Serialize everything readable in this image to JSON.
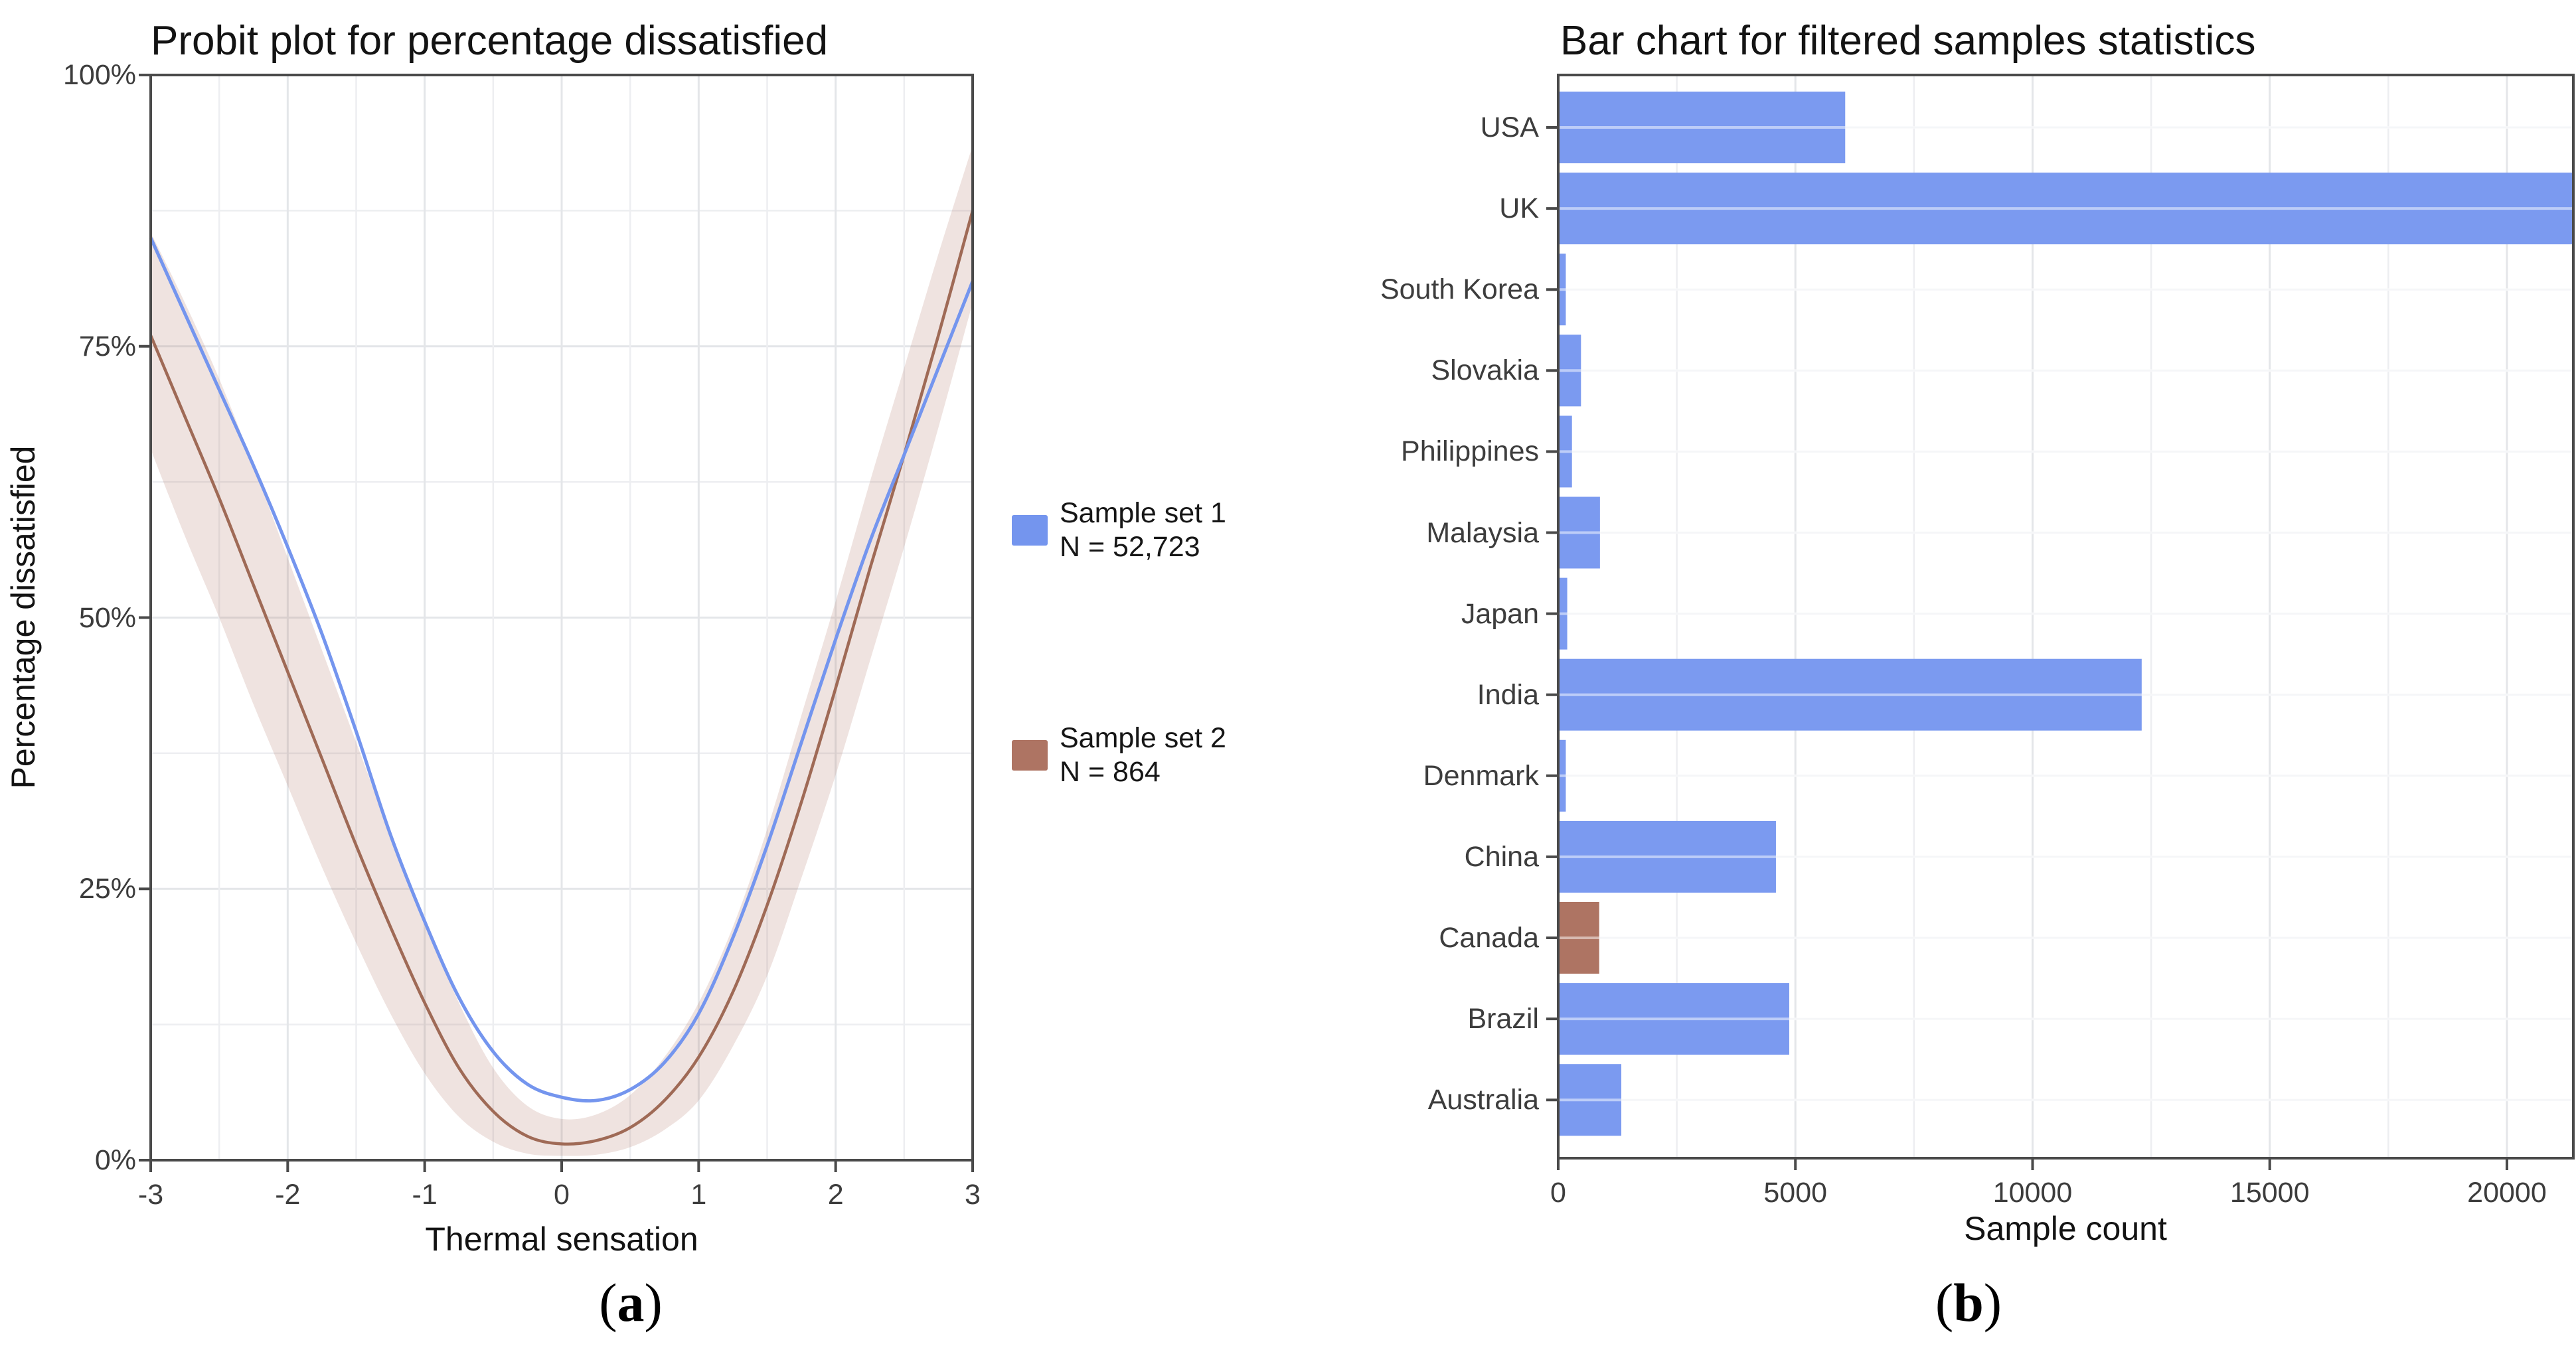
{
  "figure": {
    "caption_a": {
      "open": "(",
      "letter": "a",
      "close": ")"
    },
    "caption_b": {
      "open": "(",
      "letter": "b",
      "close": ")"
    }
  },
  "colors": {
    "blue": "#7495EE",
    "blue_bar": "#7B9AF0",
    "brown_line": "#9F6A56",
    "brown_bar": "#AE7463",
    "band_fill": "rgba(174,116,99,0.20)",
    "grid_major": "#E4E6E9",
    "grid_minor": "#EDEEF1",
    "row_grid": "#EBEDF0",
    "axis": "#4A4A4A",
    "tick_text": "#3D3D3D"
  },
  "chart_data": [
    {
      "type": "line",
      "panel": "a",
      "title": "Probit plot for percentage dissatisfied",
      "xlabel": "Thermal sensation",
      "ylabel": "Percentage dissatisfied",
      "xlim": [
        -3,
        3
      ],
      "ylim": [
        0,
        100
      ],
      "x_ticks": [
        -3,
        -2,
        -1,
        0,
        1,
        2,
        3
      ],
      "y_ticks": [
        {
          "v": 0,
          "label": "0%"
        },
        {
          "v": 25,
          "label": "25%"
        },
        {
          "v": 50,
          "label": "50%"
        },
        {
          "v": 75,
          "label": "75%"
        },
        {
          "v": 100,
          "label": "100%"
        }
      ],
      "grid": {
        "x_minor_step": 0.5,
        "y_minor_step": 12.5,
        "x_major_step": 1,
        "y_major_step": 25
      },
      "legend_position": "right",
      "x": [
        -3,
        -2.75,
        -2.5,
        -2.25,
        -2,
        -1.75,
        -1.5,
        -1.25,
        -1,
        -0.75,
        -0.5,
        -0.25,
        0,
        0.25,
        0.5,
        0.75,
        1,
        1.25,
        1.5,
        1.75,
        2,
        2.25,
        2.5,
        2.75,
        3
      ],
      "series": [
        {
          "name": "Sample set 1",
          "n": "N = 52,723",
          "color": "#7495EE",
          "swatch": "#7495EE",
          "values": [
            85,
            78,
            71,
            64,
            56.5,
            48.5,
            39.5,
            30,
            22,
            15,
            10,
            7,
            5.8,
            5.5,
            6.5,
            9,
            13.5,
            20.5,
            29,
            38.5,
            48,
            57,
            65,
            73,
            81
          ]
        },
        {
          "name": "Sample set 2",
          "n": "N = 864",
          "color": "#9F6A56",
          "swatch": "#AE7463",
          "band_color": "rgba(174,116,99,0.20)",
          "values": [
            76,
            68.5,
            61,
            53,
            45,
            37,
            29,
            21.5,
            14.5,
            8.5,
            4.5,
            2.2,
            1.5,
            1.8,
            3,
            5.5,
            9.5,
            15.5,
            23.5,
            33,
            43.5,
            54.5,
            65,
            76,
            87.5
          ],
          "band_low": [
            65.5,
            57.5,
            50,
            42,
            34.5,
            27,
            20,
            13.5,
            8,
            4,
            1.7,
            0.6,
            0.4,
            0.5,
            1.2,
            2.8,
            5.5,
            10.5,
            17,
            26,
            35.5,
            46,
            56.5,
            67.5,
            79
          ],
          "band_high": [
            85.5,
            79,
            72,
            64,
            55.5,
            47,
            38.5,
            30,
            22,
            14.5,
            8.5,
            5,
            3.8,
            4.2,
            6,
            9.5,
            14.5,
            21.5,
            30.5,
            41,
            51.5,
            62.5,
            73,
            83.5,
            93.5
          ]
        }
      ]
    },
    {
      "type": "bar",
      "panel": "b",
      "orientation": "horizontal",
      "title": "Bar chart for filtered samples statistics",
      "xlabel": "Sample count",
      "categories": [
        "USA",
        "UK",
        "South Korea",
        "Slovakia",
        "Philippines",
        "Malaysia",
        "Japan",
        "India",
        "Denmark",
        "China",
        "Canada",
        "Brazil",
        "Australia"
      ],
      "values": [
        6050,
        21400,
        160,
        480,
        290,
        880,
        190,
        12300,
        160,
        4590,
        864,
        4870,
        1330
      ],
      "bar_colors": [
        "#7B9AF0",
        "#7B9AF0",
        "#7B9AF0",
        "#7B9AF0",
        "#7B9AF0",
        "#7B9AF0",
        "#7B9AF0",
        "#7B9AF0",
        "#7B9AF0",
        "#7B9AF0",
        "#AE7463",
        "#7B9AF0",
        "#7B9AF0"
      ],
      "x_ticks": [
        0,
        5000,
        10000,
        15000,
        20000
      ],
      "xlim": [
        0,
        21400
      ],
      "grid": {
        "x_minor_step": 2500,
        "x_major_step": 5000
      }
    }
  ]
}
